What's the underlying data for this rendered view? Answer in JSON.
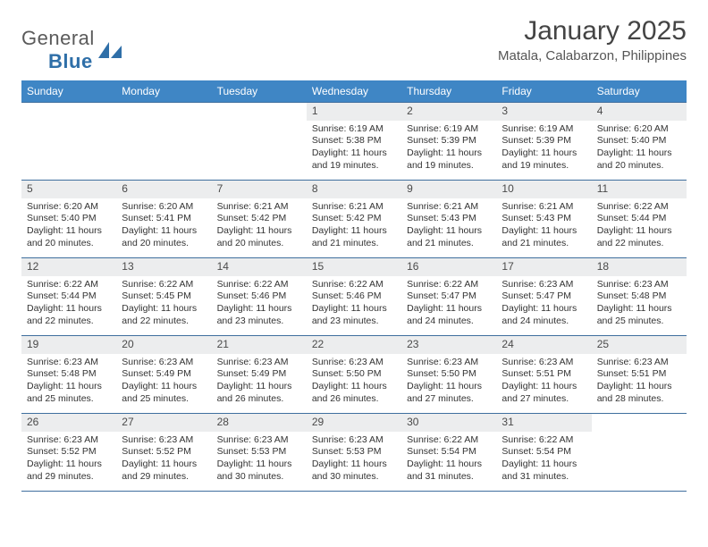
{
  "logo": {
    "general": "General",
    "blue": "Blue"
  },
  "title": "January 2025",
  "location": "Matala, Calabarzon, Philippines",
  "colors": {
    "header_bg": "#3f86c5",
    "header_text": "#ffffff",
    "daynum_bg": "#ecedee",
    "border": "#3f6f9e",
    "text": "#333333",
    "logo_gray": "#5a5a5a",
    "logo_blue": "#2f6fa8"
  },
  "fonts": {
    "title_size": 30,
    "location_size": 15,
    "dow_size": 12,
    "daynum_size": 12,
    "cell_size": 10.5
  },
  "dow": [
    "Sunday",
    "Monday",
    "Tuesday",
    "Wednesday",
    "Thursday",
    "Friday",
    "Saturday"
  ],
  "weeks": [
    [
      null,
      null,
      null,
      {
        "n": "1",
        "sr": "Sunrise: 6:19 AM",
        "ss": "Sunset: 5:38 PM",
        "dl": "Daylight: 11 hours and 19 minutes."
      },
      {
        "n": "2",
        "sr": "Sunrise: 6:19 AM",
        "ss": "Sunset: 5:39 PM",
        "dl": "Daylight: 11 hours and 19 minutes."
      },
      {
        "n": "3",
        "sr": "Sunrise: 6:19 AM",
        "ss": "Sunset: 5:39 PM",
        "dl": "Daylight: 11 hours and 19 minutes."
      },
      {
        "n": "4",
        "sr": "Sunrise: 6:20 AM",
        "ss": "Sunset: 5:40 PM",
        "dl": "Daylight: 11 hours and 20 minutes."
      }
    ],
    [
      {
        "n": "5",
        "sr": "Sunrise: 6:20 AM",
        "ss": "Sunset: 5:40 PM",
        "dl": "Daylight: 11 hours and 20 minutes."
      },
      {
        "n": "6",
        "sr": "Sunrise: 6:20 AM",
        "ss": "Sunset: 5:41 PM",
        "dl": "Daylight: 11 hours and 20 minutes."
      },
      {
        "n": "7",
        "sr": "Sunrise: 6:21 AM",
        "ss": "Sunset: 5:42 PM",
        "dl": "Daylight: 11 hours and 20 minutes."
      },
      {
        "n": "8",
        "sr": "Sunrise: 6:21 AM",
        "ss": "Sunset: 5:42 PM",
        "dl": "Daylight: 11 hours and 21 minutes."
      },
      {
        "n": "9",
        "sr": "Sunrise: 6:21 AM",
        "ss": "Sunset: 5:43 PM",
        "dl": "Daylight: 11 hours and 21 minutes."
      },
      {
        "n": "10",
        "sr": "Sunrise: 6:21 AM",
        "ss": "Sunset: 5:43 PM",
        "dl": "Daylight: 11 hours and 21 minutes."
      },
      {
        "n": "11",
        "sr": "Sunrise: 6:22 AM",
        "ss": "Sunset: 5:44 PM",
        "dl": "Daylight: 11 hours and 22 minutes."
      }
    ],
    [
      {
        "n": "12",
        "sr": "Sunrise: 6:22 AM",
        "ss": "Sunset: 5:44 PM",
        "dl": "Daylight: 11 hours and 22 minutes."
      },
      {
        "n": "13",
        "sr": "Sunrise: 6:22 AM",
        "ss": "Sunset: 5:45 PM",
        "dl": "Daylight: 11 hours and 22 minutes."
      },
      {
        "n": "14",
        "sr": "Sunrise: 6:22 AM",
        "ss": "Sunset: 5:46 PM",
        "dl": "Daylight: 11 hours and 23 minutes."
      },
      {
        "n": "15",
        "sr": "Sunrise: 6:22 AM",
        "ss": "Sunset: 5:46 PM",
        "dl": "Daylight: 11 hours and 23 minutes."
      },
      {
        "n": "16",
        "sr": "Sunrise: 6:22 AM",
        "ss": "Sunset: 5:47 PM",
        "dl": "Daylight: 11 hours and 24 minutes."
      },
      {
        "n": "17",
        "sr": "Sunrise: 6:23 AM",
        "ss": "Sunset: 5:47 PM",
        "dl": "Daylight: 11 hours and 24 minutes."
      },
      {
        "n": "18",
        "sr": "Sunrise: 6:23 AM",
        "ss": "Sunset: 5:48 PM",
        "dl": "Daylight: 11 hours and 25 minutes."
      }
    ],
    [
      {
        "n": "19",
        "sr": "Sunrise: 6:23 AM",
        "ss": "Sunset: 5:48 PM",
        "dl": "Daylight: 11 hours and 25 minutes."
      },
      {
        "n": "20",
        "sr": "Sunrise: 6:23 AM",
        "ss": "Sunset: 5:49 PM",
        "dl": "Daylight: 11 hours and 25 minutes."
      },
      {
        "n": "21",
        "sr": "Sunrise: 6:23 AM",
        "ss": "Sunset: 5:49 PM",
        "dl": "Daylight: 11 hours and 26 minutes."
      },
      {
        "n": "22",
        "sr": "Sunrise: 6:23 AM",
        "ss": "Sunset: 5:50 PM",
        "dl": "Daylight: 11 hours and 26 minutes."
      },
      {
        "n": "23",
        "sr": "Sunrise: 6:23 AM",
        "ss": "Sunset: 5:50 PM",
        "dl": "Daylight: 11 hours and 27 minutes."
      },
      {
        "n": "24",
        "sr": "Sunrise: 6:23 AM",
        "ss": "Sunset: 5:51 PM",
        "dl": "Daylight: 11 hours and 27 minutes."
      },
      {
        "n": "25",
        "sr": "Sunrise: 6:23 AM",
        "ss": "Sunset: 5:51 PM",
        "dl": "Daylight: 11 hours and 28 minutes."
      }
    ],
    [
      {
        "n": "26",
        "sr": "Sunrise: 6:23 AM",
        "ss": "Sunset: 5:52 PM",
        "dl": "Daylight: 11 hours and 29 minutes."
      },
      {
        "n": "27",
        "sr": "Sunrise: 6:23 AM",
        "ss": "Sunset: 5:52 PM",
        "dl": "Daylight: 11 hours and 29 minutes."
      },
      {
        "n": "28",
        "sr": "Sunrise: 6:23 AM",
        "ss": "Sunset: 5:53 PM",
        "dl": "Daylight: 11 hours and 30 minutes."
      },
      {
        "n": "29",
        "sr": "Sunrise: 6:23 AM",
        "ss": "Sunset: 5:53 PM",
        "dl": "Daylight: 11 hours and 30 minutes."
      },
      {
        "n": "30",
        "sr": "Sunrise: 6:22 AM",
        "ss": "Sunset: 5:54 PM",
        "dl": "Daylight: 11 hours and 31 minutes."
      },
      {
        "n": "31",
        "sr": "Sunrise: 6:22 AM",
        "ss": "Sunset: 5:54 PM",
        "dl": "Daylight: 11 hours and 31 minutes."
      },
      null
    ]
  ]
}
